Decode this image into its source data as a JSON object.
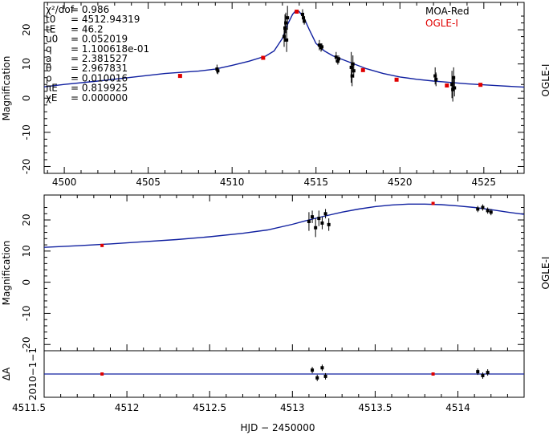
{
  "chart_data": [
    {
      "type": "scatter",
      "panel": "top",
      "xlim": [
        4498.8,
        4527.4
      ],
      "ylim": [
        -22,
        28
      ],
      "xticks": [
        4500,
        4505,
        4510,
        4515,
        4520,
        4525
      ],
      "yticks": [
        -20,
        -10,
        0,
        10,
        20
      ],
      "ylabel": "Magnification",
      "side_label": "OGLE-I",
      "legend": [
        "MOA-Red",
        "OGLE-I"
      ],
      "legend_placement": "top-right",
      "parameters": [
        {
          "label": "χ²/dof",
          "value": "= 0.986"
        },
        {
          "label": "t0",
          "value": "= 4512.94319"
        },
        {
          "label": "tE",
          "value": "= 46.2"
        },
        {
          "label": "u0",
          "value": "= 0.052019"
        },
        {
          "label": "q",
          "value": "= 1.100618e-01"
        },
        {
          "label": "a",
          "value": "= 2.381527"
        },
        {
          "label": "θ",
          "value": "= 2.967831"
        },
        {
          "label": "ρ",
          "value": "= 0.010016"
        },
        {
          "label": "πE",
          "value": "= 0.819925"
        },
        {
          "label": "χE",
          "value": "= 0.000000"
        }
      ],
      "model": [
        [
          4498.8,
          3.3
        ],
        [
          4500,
          4.0
        ],
        [
          4502,
          5.0
        ],
        [
          4504,
          6.1
        ],
        [
          4506,
          7.2
        ],
        [
          4508,
          7.9
        ],
        [
          4509,
          8.5
        ],
        [
          4510,
          9.6
        ],
        [
          4511,
          10.8
        ],
        [
          4512,
          12.3
        ],
        [
          4512.5,
          13.8
        ],
        [
          4513,
          17.5
        ],
        [
          4513.3,
          21.5
        ],
        [
          4513.6,
          24.5
        ],
        [
          4513.8,
          25.6
        ],
        [
          4514.0,
          25.3
        ],
        [
          4514.3,
          23.3
        ],
        [
          4514.6,
          20.0
        ],
        [
          4515,
          16.0
        ],
        [
          4515.5,
          13.8
        ],
        [
          4516,
          12.4
        ],
        [
          4517,
          10.5
        ],
        [
          4518,
          8.6
        ],
        [
          4519,
          7.2
        ],
        [
          4520,
          6.2
        ],
        [
          4521,
          5.5
        ],
        [
          4522,
          5.0
        ],
        [
          4523,
          4.6
        ],
        [
          4524,
          4.2
        ],
        [
          4525,
          3.9
        ],
        [
          4526,
          3.6
        ],
        [
          4527.4,
          3.2
        ]
      ],
      "moa_points": [
        [
          4509.1,
          8.5,
          1.3
        ],
        [
          4509.15,
          8.0,
          1.0
        ],
        [
          4513.1,
          18.0,
          3.0
        ],
        [
          4513.15,
          20.5,
          4.0
        ],
        [
          4513.2,
          22.0,
          3.0
        ],
        [
          4513.25,
          17.0,
          3.5
        ],
        [
          4513.3,
          23.5,
          3.5
        ],
        [
          4514.2,
          24.5,
          1.5
        ],
        [
          4514.25,
          23.5,
          1.2
        ],
        [
          4514.3,
          22.5,
          1.0
        ],
        [
          4515.2,
          15.5,
          1.5
        ],
        [
          4515.3,
          14.8,
          1.2
        ],
        [
          4515.35,
          15.0,
          1.0
        ],
        [
          4516.2,
          12.0,
          1.5
        ],
        [
          4516.3,
          10.8,
          1.0
        ],
        [
          4516.35,
          11.5,
          1.0
        ],
        [
          4517.1,
          9.0,
          4.5
        ],
        [
          4517.15,
          6.5,
          3.0
        ],
        [
          4517.2,
          10.0,
          2.5
        ],
        [
          4517.25,
          8.0,
          2.0
        ],
        [
          4522.1,
          6.5,
          2.5
        ],
        [
          4522.15,
          5.5,
          2.0
        ],
        [
          4523.1,
          4.0,
          4.0
        ],
        [
          4523.15,
          2.5,
          3.5
        ],
        [
          4523.2,
          6.0,
          3.0
        ],
        [
          4523.25,
          3.0,
          2.5
        ]
      ],
      "ogle_points": [
        [
          4506.9,
          6.5
        ],
        [
          4511.85,
          11.8
        ],
        [
          4513.85,
          25.3
        ],
        [
          4517.8,
          8.2
        ],
        [
          4519.8,
          5.4
        ],
        [
          4522.8,
          3.7
        ],
        [
          4524.8,
          3.9
        ]
      ]
    },
    {
      "type": "scatter",
      "panel": "middle",
      "xlim": [
        4511.5,
        4514.4
      ],
      "ylim": [
        -22,
        28
      ],
      "yticks": [
        -20,
        -10,
        0,
        10,
        20
      ],
      "ylabel": "Magnification",
      "side_label": "OGLE-I",
      "model": [
        [
          4511.5,
          11.2
        ],
        [
          4511.7,
          11.7
        ],
        [
          4511.9,
          12.3
        ],
        [
          4512.1,
          13.0
        ],
        [
          4512.3,
          13.7
        ],
        [
          4512.5,
          14.6
        ],
        [
          4512.7,
          15.7
        ],
        [
          4512.85,
          16.8
        ],
        [
          4513.0,
          18.6
        ],
        [
          4513.1,
          20.0
        ],
        [
          4513.2,
          21.3
        ],
        [
          4513.3,
          22.5
        ],
        [
          4513.4,
          23.5
        ],
        [
          4513.5,
          24.3
        ],
        [
          4513.6,
          24.8
        ],
        [
          4513.7,
          25.1
        ],
        [
          4513.8,
          25.1
        ],
        [
          4513.9,
          24.9
        ],
        [
          4514.0,
          24.5
        ],
        [
          4514.1,
          24.0
        ],
        [
          4514.2,
          23.3
        ],
        [
          4514.3,
          22.5
        ],
        [
          4514.4,
          21.8
        ]
      ],
      "moa_points": [
        [
          4513.1,
          19.5,
          3.0
        ],
        [
          4513.12,
          21.0,
          2.0
        ],
        [
          4513.14,
          17.5,
          3.0
        ],
        [
          4513.16,
          20.5,
          2.5
        ],
        [
          4513.18,
          19.0,
          2.0
        ],
        [
          4513.2,
          22.0,
          1.5
        ],
        [
          4513.22,
          18.5,
          2.0
        ],
        [
          4514.12,
          23.5,
          1.0
        ],
        [
          4514.15,
          24.0,
          1.0
        ],
        [
          4514.18,
          23.0,
          1.0
        ],
        [
          4514.2,
          22.5,
          1.0
        ]
      ],
      "ogle_points": [
        [
          4511.85,
          11.8
        ],
        [
          4513.85,
          25.3
        ]
      ]
    },
    {
      "type": "scatter",
      "panel": "residual",
      "xlim": [
        4511.5,
        4514.4
      ],
      "xticks": [
        4511.5,
        4512,
        4512.5,
        4513,
        4513.5,
        4514
      ],
      "xlabel": "HJD − 2450000",
      "ylabel": "ΔA",
      "ytick_text": "2010−1−1",
      "residual_points": [
        [
          4511.85,
          0
        ],
        [
          4513.12,
          0.5
        ],
        [
          4513.15,
          -0.5
        ],
        [
          4513.18,
          0.8
        ],
        [
          4513.2,
          -0.3
        ],
        [
          4513.85,
          0
        ],
        [
          4514.12,
          0.3
        ],
        [
          4514.15,
          -0.2
        ],
        [
          4514.18,
          0.2
        ]
      ]
    }
  ]
}
